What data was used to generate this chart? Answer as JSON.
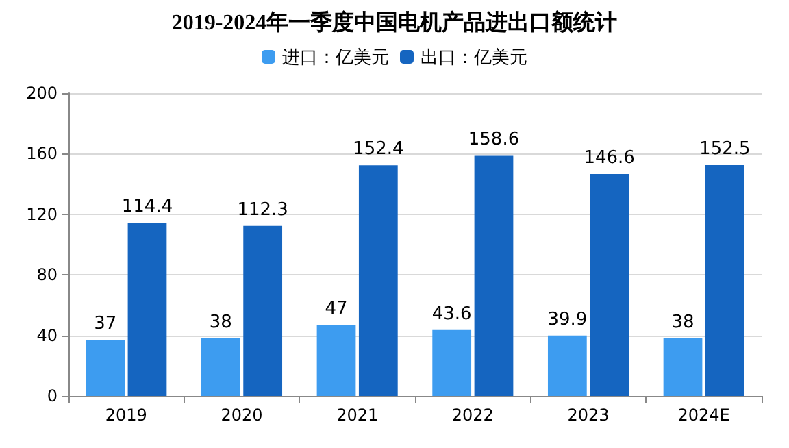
{
  "chart_data": {
    "type": "bar",
    "title": "2019-2024年一季度中国电机产品进出口额统计",
    "categories": [
      "2019",
      "2020",
      "2021",
      "2022",
      "2023",
      "2024E"
    ],
    "series": [
      {
        "name": "进口：亿美元",
        "color": "#3d9cf0",
        "values": [
          37,
          38,
          47,
          43.6,
          39.9,
          38
        ]
      },
      {
        "name": "出口：亿美元",
        "color": "#1565c0",
        "values": [
          114.4,
          112.3,
          152.4,
          158.6,
          146.6,
          152.5
        ]
      }
    ],
    "ylim": [
      0,
      200
    ],
    "yticks": [
      0,
      40,
      80,
      120,
      160,
      200
    ],
    "grid": "y",
    "legend": "top",
    "data_labels": true
  }
}
